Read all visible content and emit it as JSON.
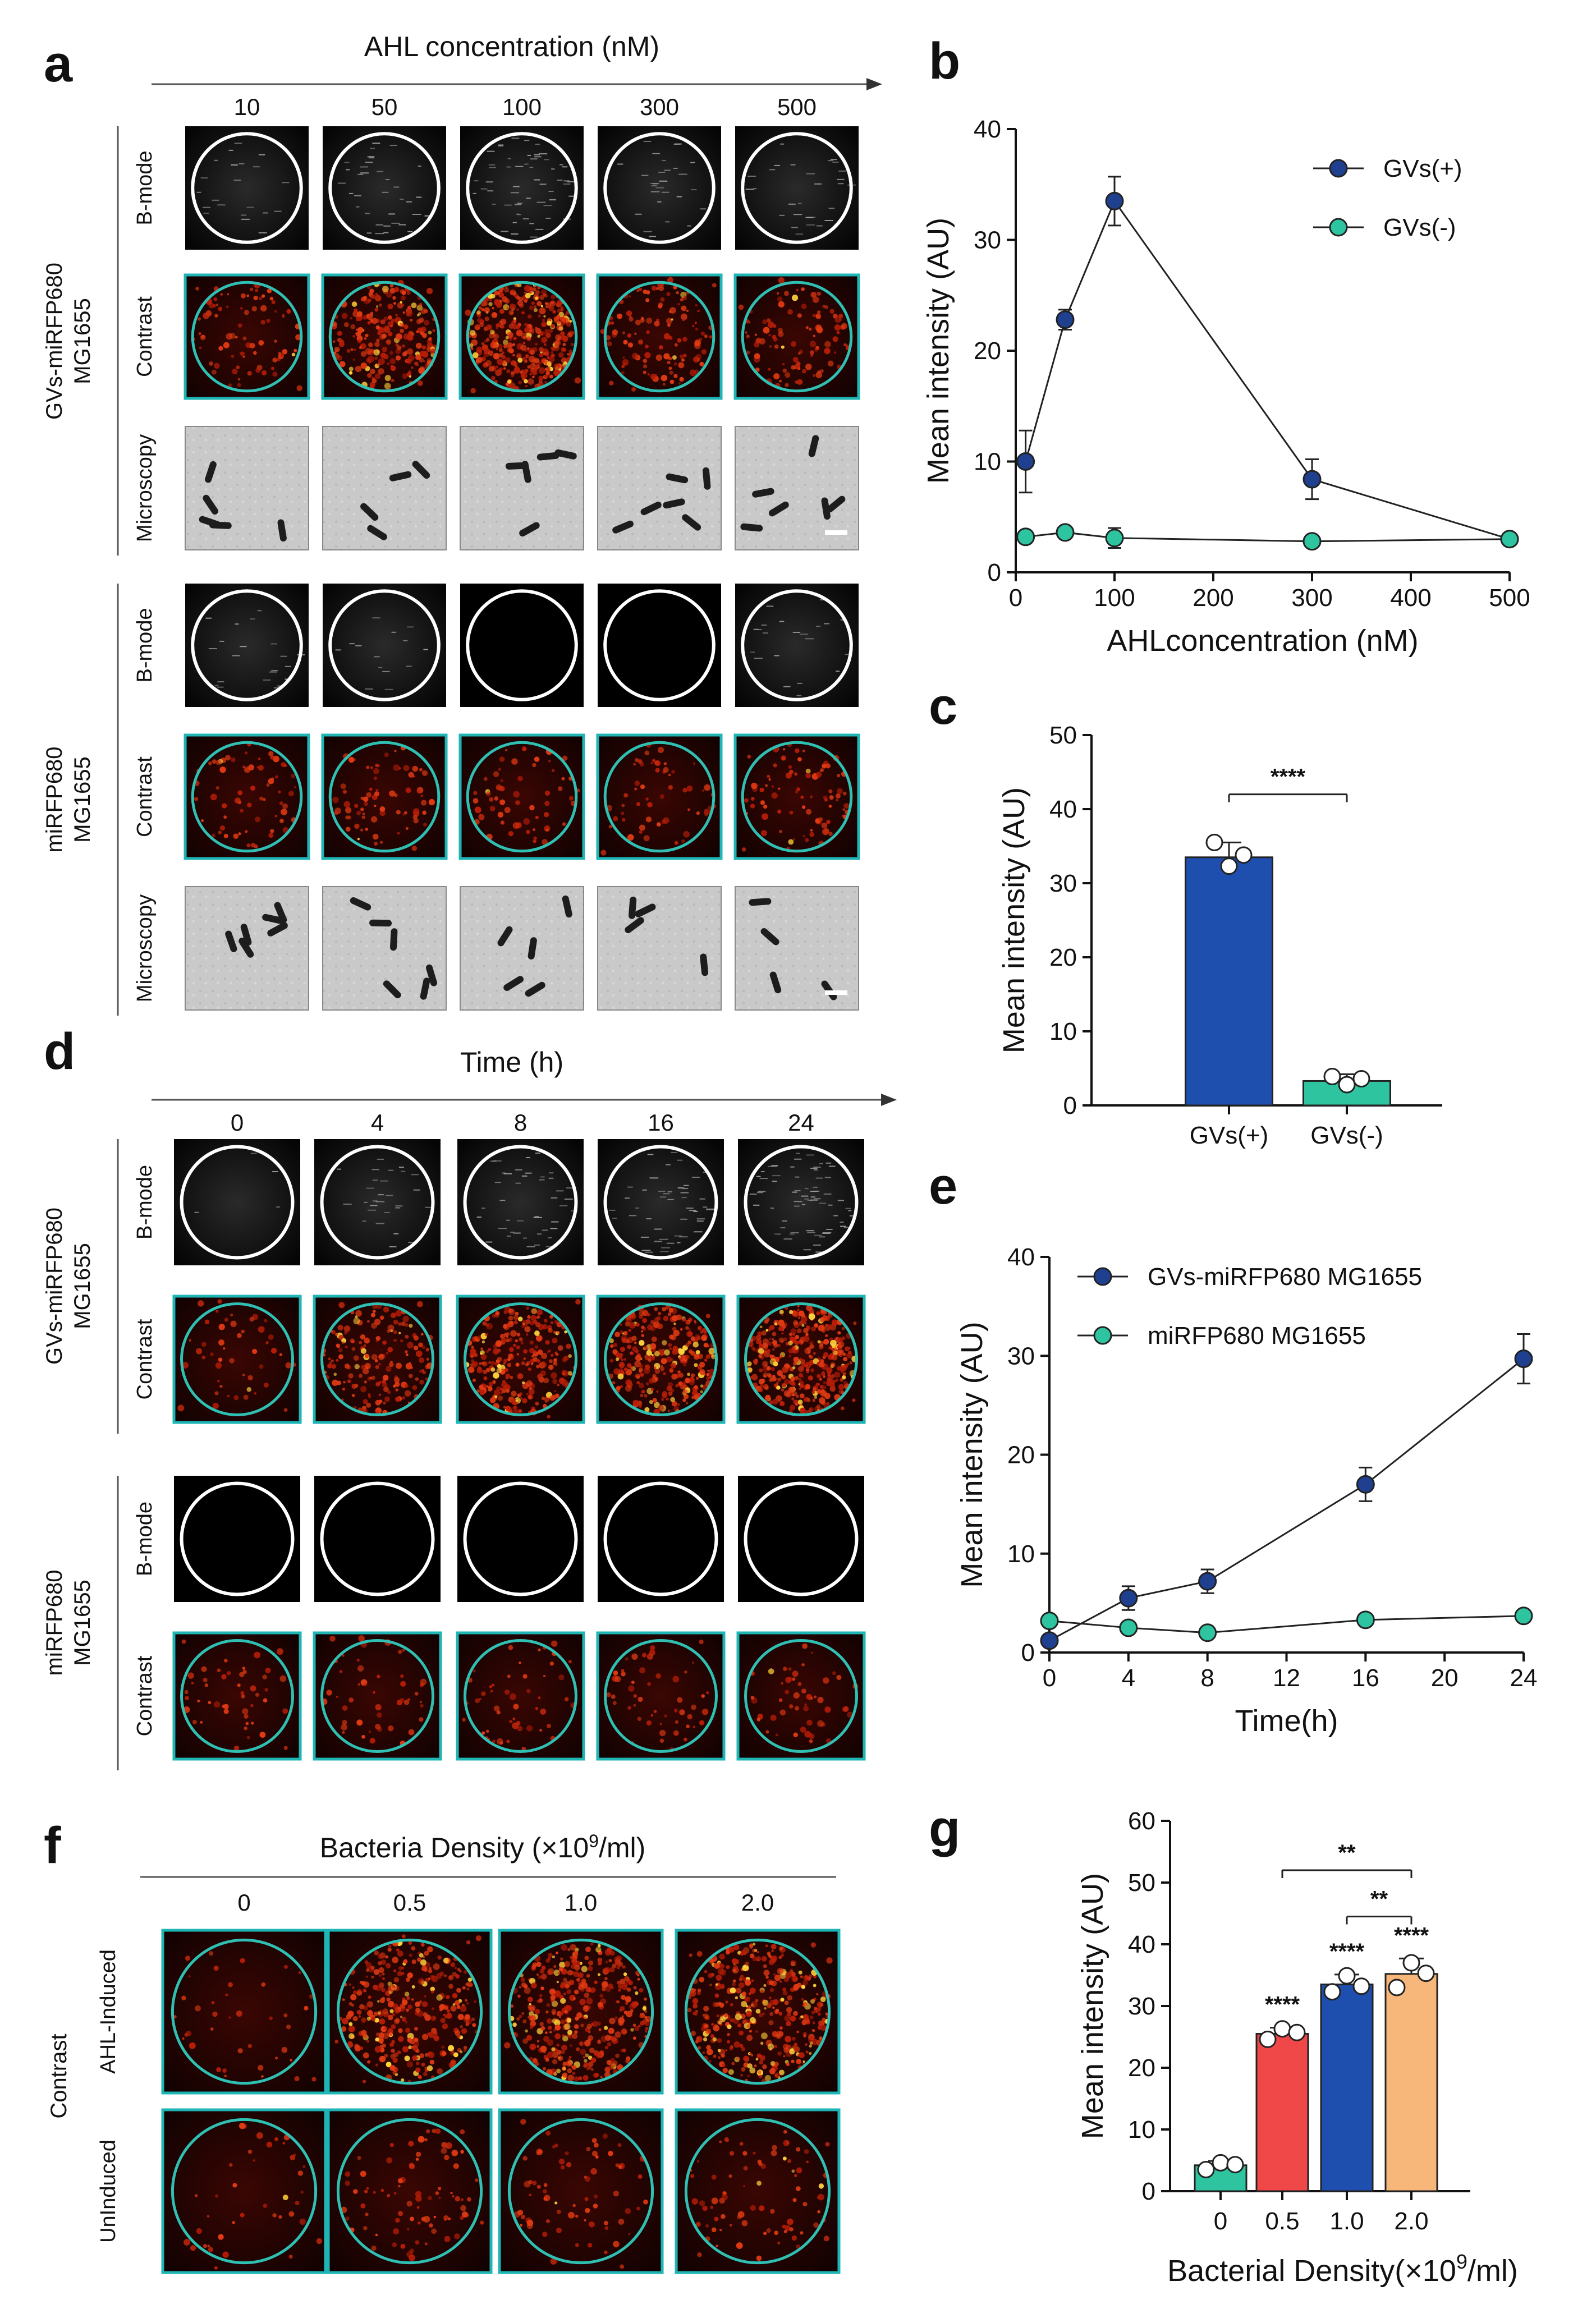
{
  "panels": {
    "a": {
      "letter": "a",
      "header": "AHL concentration (nM)",
      "columns": [
        "10",
        "50",
        "100",
        "300",
        "500"
      ],
      "groups": [
        "GVs-miRFP680\nMG1655",
        "miRFP680\nMG1655"
      ],
      "group_line1": [
        "GVs-miRFP680",
        "miRFP680"
      ],
      "group_line2": [
        "MG1655",
        "MG1655"
      ],
      "rows": [
        "B-mode",
        "Contrast",
        "Microscopy"
      ]
    },
    "b": {
      "letter": "b"
    },
    "c": {
      "letter": "c"
    },
    "d": {
      "letter": "d",
      "header": "Time (h)",
      "columns": [
        "0",
        "4",
        "8",
        "16",
        "24"
      ],
      "group_line1": [
        "GVs-miRFP680",
        "miRFP680"
      ],
      "group_line2": [
        "MG1655",
        "MG1655"
      ],
      "rows": [
        "B-mode",
        "Contrast"
      ]
    },
    "e": {
      "letter": "e"
    },
    "f": {
      "letter": "f",
      "header_main": "Bacteria Density (×10",
      "header_sup": "9",
      "header_end": "/ml)",
      "columns": [
        "0",
        "0.5",
        "1.0",
        "2.0"
      ],
      "group": "Contrast",
      "rows": [
        "AHL-Induced",
        "UnInduced"
      ]
    },
    "g": {
      "letter": "g"
    }
  },
  "chart_data": [
    {
      "panel": "b",
      "type": "line",
      "xlabel": "AHLconcentration (nM)",
      "ylabel": "Mean intensity (AU)",
      "xlim": [
        0,
        500
      ],
      "ylim": [
        0,
        40
      ],
      "xticks": [
        0,
        100,
        200,
        300,
        400,
        500
      ],
      "yticks": [
        0,
        10,
        20,
        30,
        40
      ],
      "legend_position": "top-right",
      "series": [
        {
          "name": "GVs(+)",
          "color": "#1f3f8f",
          "x": [
            10,
            50,
            100,
            300,
            500
          ],
          "y": [
            10.0,
            22.8,
            33.5,
            8.4,
            3.0
          ],
          "err": [
            2.8,
            0.9,
            2.2,
            1.8,
            0.3
          ]
        },
        {
          "name": "GVs(-)",
          "color": "#2ec4a0",
          "x": [
            10,
            50,
            100,
            300,
            500
          ],
          "y": [
            3.2,
            3.6,
            3.1,
            2.8,
            3.0
          ],
          "err": [
            0.5,
            0.3,
            0.9,
            0.3,
            0.3
          ]
        }
      ]
    },
    {
      "panel": "c",
      "type": "bar",
      "xlabel": "",
      "ylabel": "Mean intensity (AU)",
      "ylim": [
        0,
        50
      ],
      "yticks": [
        0,
        10,
        20,
        30,
        40,
        50
      ],
      "categories": [
        "GVs(+)",
        "GVs(-)"
      ],
      "values": [
        33.5,
        3.3
      ],
      "err": [
        2.0,
        0.9
      ],
      "colors": [
        "#1f4fae",
        "#2ec4a0"
      ],
      "points": [
        [
          35.5,
          32.3,
          33.8
        ],
        [
          3.9,
          2.8,
          3.6
        ]
      ],
      "significance": [
        {
          "pair": [
            0,
            1
          ],
          "label": "****"
        }
      ]
    },
    {
      "panel": "e",
      "type": "line",
      "xlabel": "Time(h)",
      "ylabel": "Mean intensity (AU)",
      "xlim": [
        0,
        24
      ],
      "ylim": [
        0,
        40
      ],
      "xticks": [
        0,
        4,
        8,
        12,
        16,
        20,
        24
      ],
      "yticks": [
        0,
        10,
        20,
        30,
        40
      ],
      "legend_position": "top-left",
      "series": [
        {
          "name": "GVs-miRFP680 MG1655",
          "color": "#1f3f8f",
          "x": [
            0,
            4,
            8,
            16,
            24
          ],
          "y": [
            1.2,
            5.5,
            7.2,
            17.0,
            29.7
          ],
          "err": [
            0.3,
            1.2,
            1.2,
            1.7,
            2.5
          ]
        },
        {
          "name": "miRFP680 MG1655",
          "color": "#2ec4a0",
          "x": [
            0,
            4,
            8,
            16,
            24
          ],
          "y": [
            3.2,
            2.5,
            2.0,
            3.3,
            3.7
          ],
          "err": [
            0.3,
            0.3,
            0.3,
            0.3,
            0.3
          ]
        }
      ]
    },
    {
      "panel": "g",
      "type": "bar",
      "xlabel_main": "Bacterial Density(×10",
      "xlabel_sup": "9",
      "xlabel_end": "/ml)",
      "ylabel": "Mean intensity (AU)",
      "ylim": [
        0,
        60
      ],
      "yticks": [
        0,
        10,
        20,
        30,
        40,
        50,
        60
      ],
      "categories": [
        "0",
        "0.5",
        "1.0",
        "2.0"
      ],
      "values": [
        4.2,
        25.5,
        33.5,
        35.2
      ],
      "err": [
        0.7,
        1.0,
        1.6,
        2.5
      ],
      "colors": [
        "#2ec4a0",
        "#f04848",
        "#1f4fae",
        "#f8b77a"
      ],
      "points": [
        [
          3.5,
          4.6,
          4.3
        ],
        [
          24.6,
          26.3,
          25.7
        ],
        [
          32.3,
          34.9,
          33.2
        ],
        [
          33.0,
          37.0,
          35.3
        ]
      ],
      "bar_labels": [
        "",
        "****",
        "****",
        "****"
      ],
      "significance": [
        {
          "pair": [
            1,
            3
          ],
          "label": "**"
        },
        {
          "pair": [
            2,
            3
          ],
          "label": "**"
        }
      ]
    }
  ]
}
